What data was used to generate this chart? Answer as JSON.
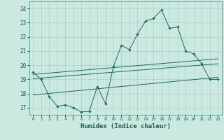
{
  "title": "",
  "xlabel": "Humidex (Indice chaleur)",
  "ylabel": "",
  "background_color": "#cce9e1",
  "grid_color": "#aacfc8",
  "line_color": "#1a6b5a",
  "xlim": [
    -0.5,
    23.5
  ],
  "ylim": [
    16.5,
    24.5
  ],
  "xticks": [
    0,
    1,
    2,
    3,
    4,
    5,
    6,
    7,
    8,
    9,
    10,
    11,
    12,
    13,
    14,
    15,
    16,
    17,
    18,
    19,
    20,
    21,
    22,
    23
  ],
  "yticks": [
    17,
    18,
    19,
    20,
    21,
    22,
    23,
    24
  ],
  "line1_x": [
    0,
    1,
    2,
    3,
    4,
    5,
    6,
    7,
    8,
    9,
    10,
    11,
    12,
    13,
    14,
    15,
    16,
    17,
    18,
    19,
    20,
    21,
    22,
    23
  ],
  "line1_y": [
    19.5,
    19.0,
    17.8,
    17.1,
    17.2,
    17.0,
    16.7,
    16.75,
    18.5,
    17.3,
    19.9,
    21.4,
    21.1,
    22.2,
    23.1,
    23.3,
    23.9,
    22.6,
    22.7,
    21.0,
    20.8,
    20.1,
    19.0,
    19.0
  ],
  "line2_x": [
    0,
    23
  ],
  "line2_y": [
    19.05,
    20.1
  ],
  "line3_x": [
    0,
    23
  ],
  "line3_y": [
    19.35,
    20.45
  ],
  "line4_x": [
    0,
    23
  ],
  "line4_y": [
    17.9,
    19.15
  ]
}
